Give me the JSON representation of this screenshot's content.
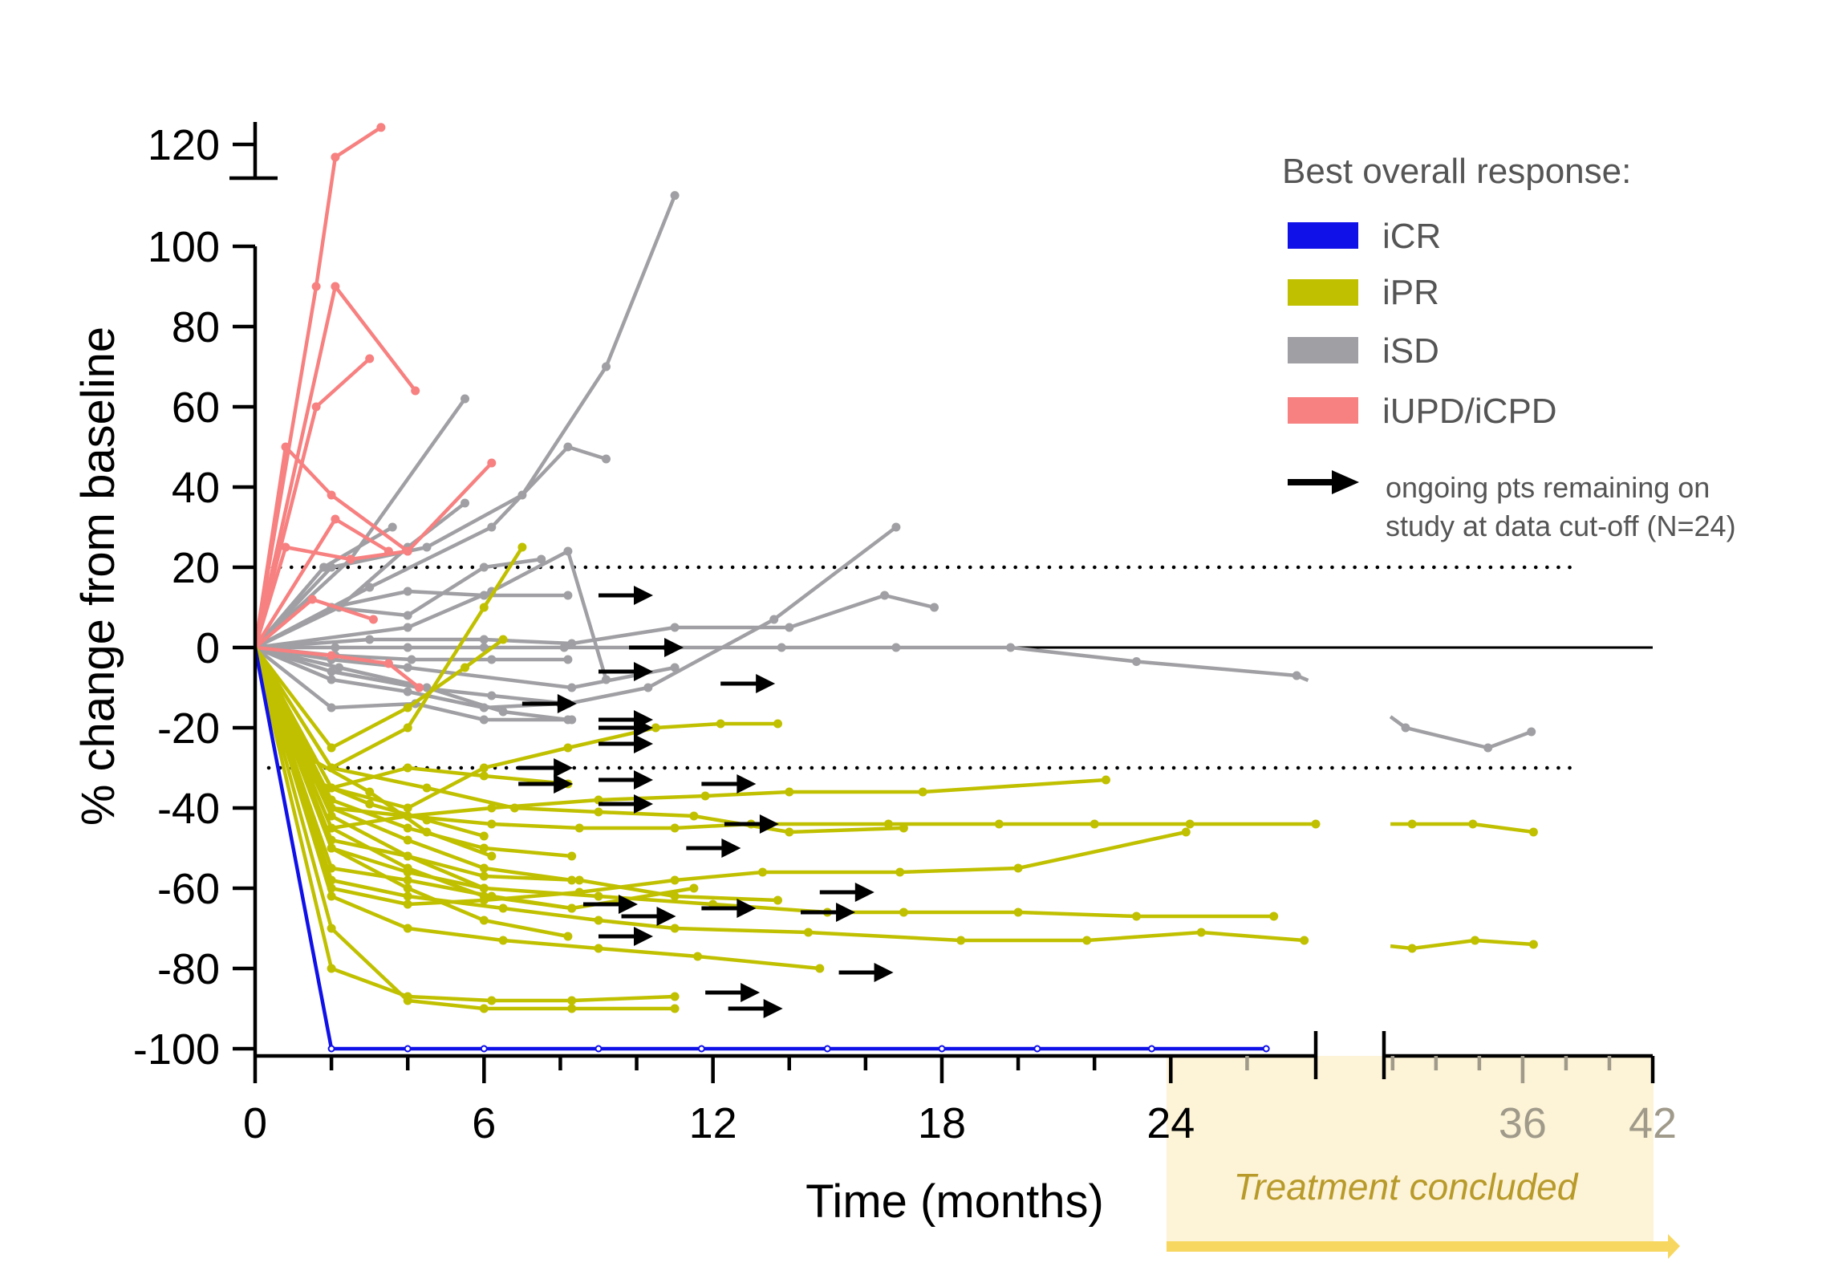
{
  "chart_data": {
    "type": "line",
    "xlabel": "Time (months)",
    "ylabel": "%  change from baseline",
    "xlim": [
      0,
      42
    ],
    "ylim": [
      -100,
      125
    ],
    "x_ticks": [
      "0",
      "6",
      "12",
      "18",
      "24",
      "36",
      "42"
    ],
    "y_ticks": [
      "120",
      "100",
      "80",
      "60",
      "40",
      "20",
      "0",
      "-20",
      "-40",
      "-60",
      "-80",
      "-100"
    ],
    "axis_break": {
      "x": [
        27.8,
        29.6
      ],
      "y": [
        101,
        112
      ]
    },
    "reference_lines": [
      {
        "y": 0,
        "style": "solid"
      },
      {
        "y": 20,
        "style": "dotted"
      },
      {
        "y": -30,
        "style": "dotted"
      }
    ],
    "treatment_band": {
      "x_start": 24,
      "label": "Treatment concluded"
    },
    "legend": {
      "title": "Best overall response:",
      "entries": [
        {
          "label": "iCR",
          "color": "#1010e8"
        },
        {
          "label": "iPR",
          "color": "#c0c000"
        },
        {
          "label": "iSD",
          "color": "#a0a0a4"
        },
        {
          "label": "iUPD/iCPD",
          "color": "#f78080"
        }
      ],
      "arrow_label_line1": "ongoing pts remaining on",
      "arrow_label_line2": "study at data cut-off (N=24)"
    },
    "colors": {
      "iCR": "#1010e8",
      "iPR": "#c0c000",
      "iSD": "#a0a0a4",
      "iUPD/iCPD": "#f78080",
      "band": "#fdf3d7",
      "band_arrow": "#f8d760",
      "band_text": "#b89a2a"
    },
    "series": [
      {
        "category": "iCR",
        "x": [
          0,
          2,
          4,
          6,
          9,
          11.7,
          15,
          18,
          20.5,
          23.5,
          26.5
        ],
        "y": [
          0,
          -100,
          -100,
          -100,
          -100,
          -100,
          -100,
          -100,
          -100,
          -100,
          -100
        ]
      },
      {
        "category": "iSD",
        "x": [
          0,
          2.1,
          4,
          6,
          8.1,
          10.8,
          13.8,
          16.8,
          19.8,
          23.1,
          27.3,
          30.6,
          34.4,
          36.4
        ],
        "y": [
          0,
          0,
          0,
          0,
          0,
          0,
          0,
          0,
          0,
          -3.5,
          -7,
          -20,
          -25,
          -21
        ]
      },
      {
        "category": "iSD",
        "x": [
          0,
          2,
          4.5,
          7,
          9.2,
          11
        ],
        "y": [
          0,
          20,
          25,
          38,
          70,
          108
        ]
      },
      {
        "category": "iSD",
        "x": [
          0,
          2.5,
          5.5
        ],
        "y": [
          0,
          22,
          62
        ]
      },
      {
        "category": "iSD",
        "x": [
          0,
          3,
          6.2,
          8.2,
          9.2
        ],
        "y": [
          0,
          15,
          30,
          50,
          47
        ]
      },
      {
        "category": "iSD",
        "x": [
          0,
          2.2,
          4,
          5.5
        ],
        "y": [
          0,
          10,
          25,
          36
        ]
      },
      {
        "category": "iSD",
        "x": [
          0,
          1.8,
          3.6
        ],
        "y": [
          0,
          20,
          30
        ]
      },
      {
        "category": "iSD",
        "x": [
          0,
          2,
          4,
          6,
          8.2
        ],
        "y": [
          0,
          10,
          14,
          13,
          13
        ]
      },
      {
        "category": "iSD",
        "x": [
          0,
          3,
          6,
          8.3,
          11,
          14,
          16.5,
          17.8
        ],
        "y": [
          0,
          2,
          2,
          1,
          5,
          5,
          13,
          10
        ]
      },
      {
        "category": "iSD",
        "x": [
          0,
          2,
          4,
          8.3,
          11
        ],
        "y": [
          0,
          -3,
          -5,
          -10,
          -5
        ]
      },
      {
        "category": "iSD",
        "x": [
          0,
          2.1,
          4.1,
          6.2,
          8.2
        ],
        "y": [
          0,
          -2,
          -3,
          -3,
          -3
        ]
      },
      {
        "category": "iSD",
        "x": [
          0,
          2,
          4,
          6,
          8
        ],
        "y": [
          0,
          -8,
          -11,
          -15,
          -14
        ]
      },
      {
        "category": "iSD",
        "x": [
          0,
          2,
          4.2,
          6,
          8.3
        ],
        "y": [
          0,
          -15,
          -14,
          -18,
          -18
        ]
      },
      {
        "category": "iSD",
        "x": [
          0,
          2,
          4,
          6,
          7.5
        ],
        "y": [
          0,
          10,
          8,
          20,
          22
        ]
      },
      {
        "category": "iSD",
        "x": [
          0,
          2.2,
          4.5,
          6.5,
          8.2
        ],
        "y": [
          0,
          -5,
          -10,
          -16,
          -18
        ]
      },
      {
        "category": "iSD",
        "x": [
          0,
          4,
          6.2,
          8.2,
          9.2
        ],
        "y": [
          0,
          5,
          14,
          24,
          -8
        ]
      },
      {
        "category": "iSD",
        "x": [
          0,
          2,
          4.3,
          6.2,
          8.2,
          10.3,
          13.6,
          16.8
        ],
        "y": [
          0,
          -6,
          -10,
          -12,
          -14,
          -10,
          7,
          30
        ]
      },
      {
        "category": "iUPD/iCPD",
        "x": [
          0,
          1.6,
          2.1,
          3.3
        ],
        "y": [
          0,
          90,
          117,
          124
        ]
      },
      {
        "category": "iUPD/iCPD",
        "x": [
          0,
          2.1,
          4.2
        ],
        "y": [
          0,
          90,
          64
        ]
      },
      {
        "category": "iUPD/iCPD",
        "x": [
          0,
          1.6,
          3.0
        ],
        "y": [
          0,
          60,
          72
        ]
      },
      {
        "category": "iUPD/iCPD",
        "x": [
          0,
          0.8,
          2,
          4
        ],
        "y": [
          0,
          50,
          38,
          24
        ]
      },
      {
        "category": "iUPD/iCPD",
        "x": [
          0,
          0.8,
          2.5,
          4,
          6.2
        ],
        "y": [
          0,
          25,
          22,
          24,
          46
        ]
      },
      {
        "category": "iUPD/iCPD",
        "x": [
          0,
          2.1,
          3.5
        ],
        "y": [
          0,
          32,
          24
        ]
      },
      {
        "category": "iUPD/iCPD",
        "x": [
          0,
          1.5,
          3.1
        ],
        "y": [
          0,
          12,
          7
        ]
      },
      {
        "category": "iUPD/iCPD",
        "x": [
          0,
          2,
          3.5,
          4.3
        ],
        "y": [
          0,
          -2,
          -4,
          -10
        ]
      },
      {
        "category": "iPR",
        "x": [
          0,
          2,
          4,
          6.2,
          8.5,
          11,
          13,
          16.6,
          19.5,
          22,
          24.5,
          27.8,
          30.9,
          33.7,
          36.5
        ],
        "y": [
          0,
          -40,
          -42,
          -44,
          -45,
          -45,
          -44,
          -44,
          -44,
          -44,
          -44,
          -44,
          -44,
          -44,
          -46
        ]
      },
      {
        "category": "iPR",
        "x": [
          0,
          2,
          4,
          6.5,
          9,
          11,
          14.5,
          18.5,
          21.8,
          24.8,
          27.5,
          30.9,
          33.8,
          36.5
        ],
        "y": [
          0,
          -58,
          -62,
          -65,
          -68,
          -70,
          -71,
          -73,
          -73,
          -71,
          -73,
          -75,
          -73,
          -74
        ]
      },
      {
        "category": "iPR",
        "x": [
          0,
          2,
          4,
          6.2,
          9,
          11.8,
          14,
          17.5,
          22.3
        ],
        "y": [
          0,
          -45,
          -42,
          -40,
          -38,
          -37,
          -36,
          -36,
          -33
        ]
      },
      {
        "category": "iPR",
        "x": [
          0,
          2,
          4,
          6,
          9,
          12,
          15,
          17,
          20,
          23.1,
          26.7
        ],
        "y": [
          0,
          -50,
          -56,
          -60,
          -62,
          -64,
          -66,
          -66,
          -66,
          -67,
          -67
        ]
      },
      {
        "category": "iPR",
        "x": [
          0,
          2,
          4.5,
          6.8,
          9,
          11.5,
          14,
          17
        ],
        "y": [
          0,
          -30,
          -35,
          -40,
          -41,
          -42,
          -46,
          -45
        ]
      },
      {
        "category": "iPR",
        "x": [
          0,
          2,
          4,
          6,
          8.5,
          11,
          13.3,
          16.9,
          20,
          24.4
        ],
        "y": [
          0,
          -60,
          -64,
          -63,
          -61,
          -58,
          -56,
          -56,
          -55,
          -46
        ]
      },
      {
        "category": "iPR",
        "x": [
          0,
          2,
          4,
          6.5,
          9,
          11.6,
          14.8
        ],
        "y": [
          0,
          -62,
          -70,
          -73,
          -75,
          -77,
          -80
        ]
      },
      {
        "category": "iPR",
        "x": [
          0,
          2,
          4,
          6.2,
          8.3,
          11
        ],
        "y": [
          0,
          -80,
          -87,
          -88,
          -88,
          -87
        ]
      },
      {
        "category": "iPR",
        "x": [
          0,
          2,
          4,
          6,
          8.3,
          11
        ],
        "y": [
          0,
          -70,
          -88,
          -90,
          -90,
          -90
        ]
      },
      {
        "category": "iPR",
        "x": [
          0,
          2,
          4,
          6,
          8.2,
          10.5,
          12.2,
          13.7
        ],
        "y": [
          0,
          -35,
          -40,
          -30,
          -25,
          -20,
          -19,
          -19
        ]
      },
      {
        "category": "iPR",
        "x": [
          0,
          2,
          4,
          6,
          7
        ],
        "y": [
          0,
          -30,
          -20,
          10,
          25
        ]
      },
      {
        "category": "iPR",
        "x": [
          0,
          2,
          4,
          5.5,
          6.5
        ],
        "y": [
          0,
          -25,
          -15,
          -5,
          2
        ]
      },
      {
        "category": "iPR",
        "x": [
          0,
          2,
          4,
          6,
          8.3
        ],
        "y": [
          0,
          -40,
          -48,
          -55,
          -58
        ]
      },
      {
        "category": "iPR",
        "x": [
          0,
          2,
          4,
          6,
          8.3
        ],
        "y": [
          0,
          -38,
          -45,
          -50,
          -52
        ]
      },
      {
        "category": "iPR",
        "x": [
          0,
          2,
          4,
          6,
          8.2
        ],
        "y": [
          0,
          -35,
          -30,
          -32,
          -34
        ]
      },
      {
        "category": "iPR",
        "x": [
          0,
          2,
          4,
          6,
          8.3
        ],
        "y": [
          0,
          -45,
          -55,
          -62,
          -65
        ]
      },
      {
        "category": "iPR",
        "x": [
          0,
          2,
          4,
          6,
          8.2
        ],
        "y": [
          0,
          -50,
          -60,
          -68,
          -72
        ]
      },
      {
        "category": "iPR",
        "x": [
          0,
          2,
          4,
          6
        ],
        "y": [
          0,
          -42,
          -52,
          -60
        ]
      },
      {
        "category": "iPR",
        "x": [
          0,
          2,
          4,
          6.2,
          8.3,
          11.5
        ],
        "y": [
          0,
          -55,
          -58,
          -62,
          -65,
          -60
        ]
      },
      {
        "category": "iPR",
        "x": [
          0,
          2,
          4,
          6,
          8.5,
          11,
          13.7
        ],
        "y": [
          0,
          -48,
          -52,
          -57,
          -58,
          -62,
          -63
        ]
      },
      {
        "category": "iPR",
        "x": [
          0,
          1.5,
          3,
          4.5,
          6
        ],
        "y": [
          0,
          -33,
          -39,
          -43,
          -47
        ]
      },
      {
        "category": "iPR",
        "x": [
          0,
          1.5,
          3,
          4.5,
          6.2
        ],
        "y": [
          0,
          -28,
          -36,
          -46,
          -52
        ]
      }
    ],
    "ongoing_arrows": [
      {
        "x": 9,
        "y": 13
      },
      {
        "x": 9.8,
        "y": 0
      },
      {
        "x": 9,
        "y": -6
      },
      {
        "x": 12.2,
        "y": -9
      },
      {
        "x": 7,
        "y": -14
      },
      {
        "x": 9,
        "y": -18
      },
      {
        "x": 9,
        "y": -20
      },
      {
        "x": 9,
        "y": -24
      },
      {
        "x": 6.9,
        "y": -30
      },
      {
        "x": 6.9,
        "y": -34
      },
      {
        "x": 9,
        "y": -33
      },
      {
        "x": 11.7,
        "y": -34
      },
      {
        "x": 9,
        "y": -39
      },
      {
        "x": 12.3,
        "y": -44
      },
      {
        "x": 11.3,
        "y": -50
      },
      {
        "x": 14.8,
        "y": -61
      },
      {
        "x": 8.6,
        "y": -64
      },
      {
        "x": 9.6,
        "y": -67
      },
      {
        "x": 11.7,
        "y": -65
      },
      {
        "x": 14.3,
        "y": -66
      },
      {
        "x": 9,
        "y": -72
      },
      {
        "x": 15.3,
        "y": -81
      },
      {
        "x": 11.8,
        "y": -86
      },
      {
        "x": 12.4,
        "y": -90
      }
    ]
  }
}
